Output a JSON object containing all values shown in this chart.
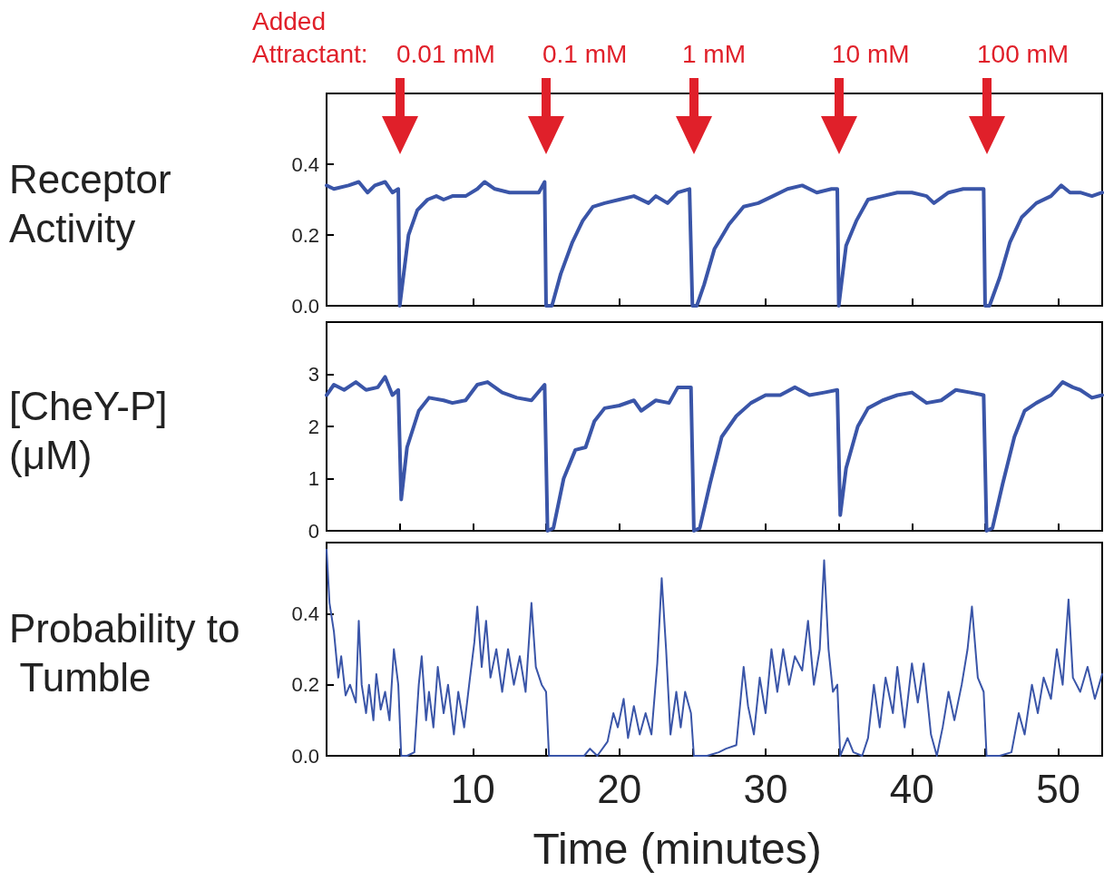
{
  "chart_data": [
    {
      "type": "line",
      "ylabel": "Receptor Activity",
      "tick_labels": "y",
      "grid": false,
      "marker": "none",
      "line_style": "solid",
      "color": "#3a55a8",
      "annotations": [
        "Added\nAttractant:",
        "0.01 mM",
        "0.1 mM",
        "1 mM",
        "10 mM",
        "100 mM"
      ],
      "xlim": [
        0,
        53
      ],
      "xticks": [
        {
          "value": 5,
          "label": null
        },
        {
          "value": 10,
          "label": null
        },
        {
          "value": 15,
          "label": null
        },
        {
          "value": 20,
          "label": null
        },
        {
          "value": 25,
          "label": null
        },
        {
          "value": 30,
          "label": null
        },
        {
          "value": 35,
          "label": null
        },
        {
          "value": 40,
          "label": null
        },
        {
          "value": 45,
          "label": null
        },
        {
          "value": 50,
          "label": null
        }
      ],
      "ylim": [
        0,
        0.6
      ],
      "yticks": [
        {
          "value": 0,
          "label": "0.0"
        },
        {
          "value": 0.2,
          "label": "0.2"
        },
        {
          "value": 0.4,
          "label": "0.4"
        }
      ],
      "x": [
        0,
        0.5,
        1.5,
        2.2,
        2.8,
        3.3,
        4.0,
        4.5,
        4.9,
        5.0,
        5.3,
        5.6,
        6.2,
        6.9,
        7.5,
        8.0,
        8.6,
        9.5,
        10.3,
        10.8,
        11.5,
        12.5,
        13.5,
        14.5,
        14.9,
        15.0,
        15.4,
        16.0,
        16.8,
        17.5,
        18.2,
        19.0,
        20.0,
        21.0,
        22.0,
        22.5,
        23.3,
        24.0,
        24.8,
        25.0,
        25.3,
        25.8,
        26.5,
        27.5,
        28.5,
        29.5,
        30.5,
        31.5,
        32.5,
        33.5,
        34.5,
        34.9,
        35.0,
        35.5,
        36.2,
        37.0,
        38.0,
        39.0,
        40.0,
        41.0,
        41.5,
        42.5,
        43.5,
        44.6,
        44.9,
        45.0,
        45.3,
        46.0,
        46.7,
        47.5,
        48.5,
        49.5,
        50.2,
        50.8,
        51.5,
        52.3,
        53
      ],
      "values": [
        0.34,
        0.33,
        0.34,
        0.35,
        0.32,
        0.34,
        0.35,
        0.32,
        0.33,
        0.0,
        0.1,
        0.2,
        0.27,
        0.3,
        0.31,
        0.3,
        0.31,
        0.31,
        0.33,
        0.35,
        0.33,
        0.32,
        0.32,
        0.32,
        0.35,
        0.0,
        0.0,
        0.09,
        0.18,
        0.24,
        0.28,
        0.29,
        0.3,
        0.31,
        0.29,
        0.31,
        0.29,
        0.32,
        0.33,
        0.0,
        0.0,
        0.06,
        0.16,
        0.23,
        0.28,
        0.29,
        0.31,
        0.33,
        0.34,
        0.32,
        0.33,
        0.33,
        0.0,
        0.17,
        0.24,
        0.3,
        0.31,
        0.32,
        0.32,
        0.31,
        0.29,
        0.32,
        0.33,
        0.33,
        0.33,
        0.0,
        0.0,
        0.08,
        0.18,
        0.25,
        0.29,
        0.31,
        0.34,
        0.32,
        0.32,
        0.31,
        0.32
      ]
    },
    {
      "type": "line",
      "ylabel": "[CheY-P] (μM)",
      "tick_labels": "y",
      "grid": false,
      "marker": "none",
      "line_style": "solid",
      "color": "#3a55a8",
      "xlim": [
        0,
        53
      ],
      "xticks": [
        {
          "value": 5,
          "label": null
        },
        {
          "value": 10,
          "label": null
        },
        {
          "value": 15,
          "label": null
        },
        {
          "value": 20,
          "label": null
        },
        {
          "value": 25,
          "label": null
        },
        {
          "value": 30,
          "label": null
        },
        {
          "value": 35,
          "label": null
        },
        {
          "value": 40,
          "label": null
        },
        {
          "value": 45,
          "label": null
        },
        {
          "value": 50,
          "label": null
        }
      ],
      "ylim": [
        0,
        4
      ],
      "yticks": [
        0,
        1,
        2,
        3
      ],
      "x": [
        0,
        0.5,
        1.2,
        2.0,
        2.7,
        3.5,
        4.0,
        4.5,
        4.9,
        5.1,
        5.5,
        6.3,
        7.0,
        8.0,
        8.6,
        9.5,
        10.3,
        11.0,
        12.0,
        13.0,
        14.0,
        14.9,
        15.1,
        15.5,
        16.2,
        17.0,
        17.7,
        18.3,
        19.0,
        20.0,
        21.0,
        21.5,
        22.5,
        23.4,
        24.0,
        24.9,
        25.1,
        25.5,
        26.2,
        27.0,
        28.0,
        29.0,
        30.0,
        31.0,
        32.0,
        33.0,
        34.0,
        34.9,
        35.1,
        35.5,
        36.3,
        37.0,
        38.0,
        39.0,
        40.0,
        41.0,
        42.0,
        43.0,
        44.0,
        44.9,
        45.1,
        45.5,
        46.2,
        47.0,
        47.7,
        48.5,
        49.5,
        50.3,
        51.0,
        51.5,
        52.3,
        53
      ],
      "values": [
        2.6,
        2.8,
        2.7,
        2.85,
        2.7,
        2.75,
        2.95,
        2.6,
        2.7,
        0.6,
        1.6,
        2.3,
        2.55,
        2.5,
        2.45,
        2.5,
        2.8,
        2.85,
        2.65,
        2.55,
        2.5,
        2.8,
        0.0,
        0.05,
        1.0,
        1.55,
        1.6,
        2.1,
        2.35,
        2.4,
        2.5,
        2.3,
        2.5,
        2.45,
        2.75,
        2.75,
        0.0,
        0.05,
        0.9,
        1.8,
        2.2,
        2.45,
        2.6,
        2.6,
        2.75,
        2.6,
        2.65,
        2.7,
        0.3,
        1.2,
        2.0,
        2.35,
        2.5,
        2.6,
        2.65,
        2.45,
        2.5,
        2.7,
        2.65,
        2.6,
        0.0,
        0.05,
        0.9,
        1.8,
        2.3,
        2.45,
        2.6,
        2.85,
        2.75,
        2.7,
        2.55,
        2.6
      ]
    },
    {
      "type": "line",
      "ylabel": "Probability to Tumble",
      "xlabel": "Time (minutes)",
      "grid": false,
      "marker": "none",
      "line_style": "solid",
      "color": "#3a55a8",
      "xlim": [
        0,
        53
      ],
      "xticks": [
        {
          "value": 5,
          "label": null
        },
        10,
        {
          "value": 15,
          "label": null
        },
        20,
        {
          "value": 25,
          "label": null
        },
        30,
        {
          "value": 35,
          "label": null
        },
        40,
        {
          "value": 45,
          "label": null
        },
        50
      ],
      "ylim": [
        0,
        0.6
      ],
      "yticks": [
        {
          "value": 0,
          "label": "0.0"
        },
        {
          "value": 0.2,
          "label": "0.2"
        },
        {
          "value": 0.4,
          "label": "0.4"
        }
      ],
      "x": [
        0,
        0.2,
        0.5,
        0.8,
        1.0,
        1.3,
        1.6,
        2.0,
        2.2,
        2.4,
        2.7,
        2.9,
        3.2,
        3.4,
        3.7,
        4.0,
        4.3,
        4.6,
        4.9,
        5.1,
        5.5,
        6.0,
        6.3,
        6.5,
        6.8,
        7.0,
        7.3,
        7.6,
        8.0,
        8.3,
        8.7,
        9.0,
        9.4,
        9.8,
        10.1,
        10.3,
        10.6,
        10.9,
        11.2,
        11.6,
        12.0,
        12.4,
        12.8,
        13.2,
        13.6,
        14.0,
        14.3,
        14.7,
        15.0,
        15.2,
        16.0,
        17.0,
        17.6,
        18.0,
        18.5,
        19.2,
        19.6,
        19.9,
        20.3,
        20.6,
        21.0,
        21.4,
        21.8,
        22.2,
        22.6,
        22.9,
        23.2,
        23.5,
        23.9,
        24.2,
        24.5,
        24.9,
        25.1,
        26.0,
        26.8,
        27.3,
        28.0,
        28.5,
        28.8,
        29.2,
        29.6,
        30.0,
        30.4,
        30.8,
        31.2,
        31.6,
        32.0,
        32.5,
        32.9,
        33.3,
        33.7,
        34.0,
        34.3,
        34.6,
        34.9,
        35.1,
        35.6,
        36.0,
        36.6,
        37.0,
        37.4,
        37.8,
        38.2,
        38.7,
        39.0,
        39.5,
        40.0,
        40.4,
        40.8,
        41.3,
        41.7,
        42.1,
        42.5,
        42.9,
        43.4,
        43.8,
        44.1,
        44.5,
        44.9,
        45.1,
        46.0,
        46.8,
        47.3,
        47.7,
        48.2,
        48.6,
        49.0,
        49.5,
        49.9,
        50.3,
        50.7,
        51.0,
        51.5,
        52.0,
        52.5,
        53
      ],
      "values": [
        0.58,
        0.43,
        0.35,
        0.22,
        0.28,
        0.17,
        0.2,
        0.15,
        0.38,
        0.2,
        0.12,
        0.2,
        0.1,
        0.23,
        0.13,
        0.18,
        0.1,
        0.3,
        0.2,
        0.0,
        0.0,
        0.01,
        0.2,
        0.28,
        0.1,
        0.18,
        0.08,
        0.25,
        0.12,
        0.2,
        0.06,
        0.18,
        0.08,
        0.22,
        0.32,
        0.42,
        0.25,
        0.38,
        0.22,
        0.3,
        0.18,
        0.3,
        0.2,
        0.28,
        0.18,
        0.43,
        0.25,
        0.2,
        0.18,
        0.0,
        0.0,
        0.0,
        0.0,
        0.02,
        0.0,
        0.04,
        0.12,
        0.08,
        0.16,
        0.05,
        0.14,
        0.06,
        0.12,
        0.06,
        0.26,
        0.5,
        0.3,
        0.06,
        0.18,
        0.08,
        0.18,
        0.12,
        0.0,
        0.0,
        0.01,
        0.02,
        0.03,
        0.25,
        0.14,
        0.06,
        0.22,
        0.12,
        0.3,
        0.18,
        0.3,
        0.2,
        0.28,
        0.24,
        0.38,
        0.2,
        0.3,
        0.55,
        0.3,
        0.18,
        0.2,
        0.0,
        0.05,
        0.01,
        0.0,
        0.05,
        0.2,
        0.08,
        0.22,
        0.12,
        0.25,
        0.08,
        0.26,
        0.15,
        0.26,
        0.06,
        0.0,
        0.08,
        0.18,
        0.1,
        0.2,
        0.3,
        0.42,
        0.22,
        0.18,
        0.0,
        0.0,
        0.01,
        0.12,
        0.06,
        0.2,
        0.12,
        0.22,
        0.16,
        0.3,
        0.2,
        0.44,
        0.22,
        0.18,
        0.25,
        0.16,
        0.23
      ]
    }
  ]
}
